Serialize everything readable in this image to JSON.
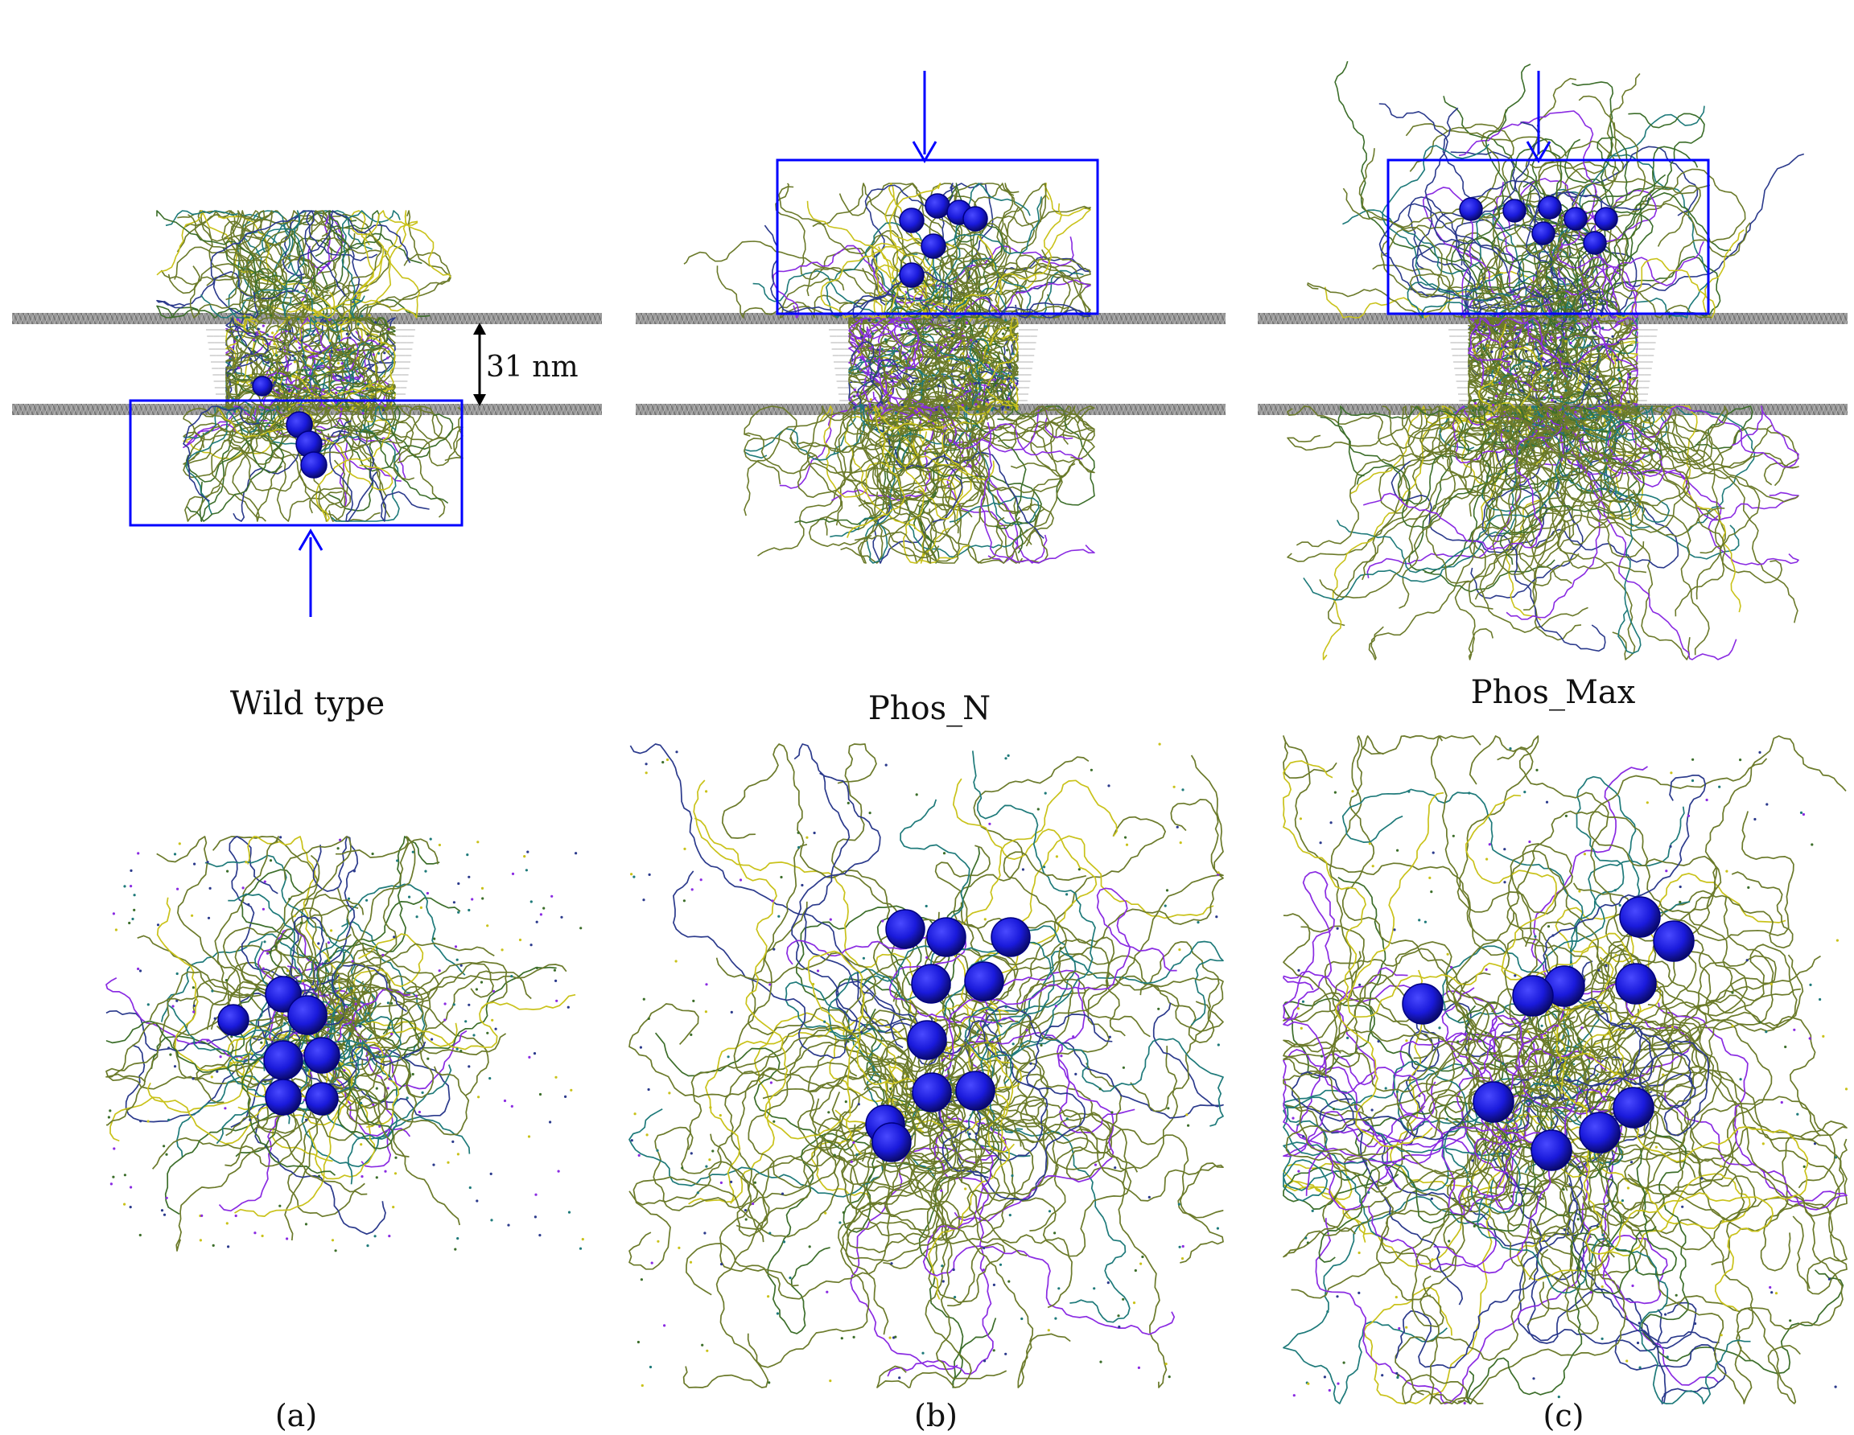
{
  "figure": {
    "scale_bar_label": "31 nm",
    "colors": {
      "bead": "#1a1adb",
      "bead_edge": "#000080",
      "highlight_box": "#0000ff",
      "membrane": "#8c8c8c",
      "chain_primary": "#6b7a2a",
      "chain_accents": [
        "#c9c21a",
        "#2b3a8c",
        "#1e7a7a",
        "#8a2be2",
        "#3c6e2a"
      ]
    },
    "panels": [
      {
        "id": "a",
        "title": "Wild type",
        "label": "(a)"
      },
      {
        "id": "b",
        "title": "Phos_N",
        "label": "(b)"
      },
      {
        "id": "c",
        "title": "Phos_Max",
        "label": "(c)"
      }
    ]
  }
}
